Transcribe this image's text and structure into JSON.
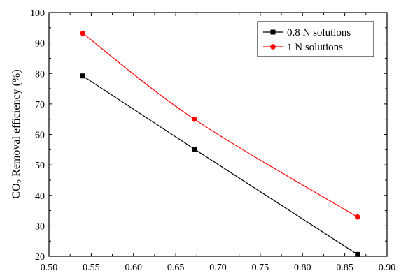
{
  "chart_data": {
    "type": "line",
    "ylabel_main": "CO",
    "ylabel_sub": "2",
    "ylabel_rest": " Removal efficiency (%)",
    "xlabel": "",
    "xlim": [
      0.5,
      0.9
    ],
    "ylim": [
      20,
      100
    ],
    "xticks": [
      "0.50",
      "0.55",
      "0.60",
      "0.65",
      "0.70",
      "0.75",
      "0.80",
      "0.85",
      "0.90"
    ],
    "yticks": [
      "20",
      "30",
      "40",
      "50",
      "60",
      "70",
      "80",
      "90",
      "100"
    ],
    "grid": false,
    "legend_position": "top-right",
    "series": [
      {
        "name": "0.8 N solutions",
        "color": "#000000",
        "marker": "square",
        "line": "straight",
        "x": [
          0.54,
          0.672,
          0.865
        ],
        "y": [
          79.2,
          55.2,
          20.6
        ]
      },
      {
        "name": "1 N solutions",
        "color": "#ff0000",
        "marker": "circle",
        "line": "smooth",
        "x": [
          0.54,
          0.672,
          0.865
        ],
        "y": [
          93.2,
          65.0,
          32.9
        ]
      }
    ]
  }
}
